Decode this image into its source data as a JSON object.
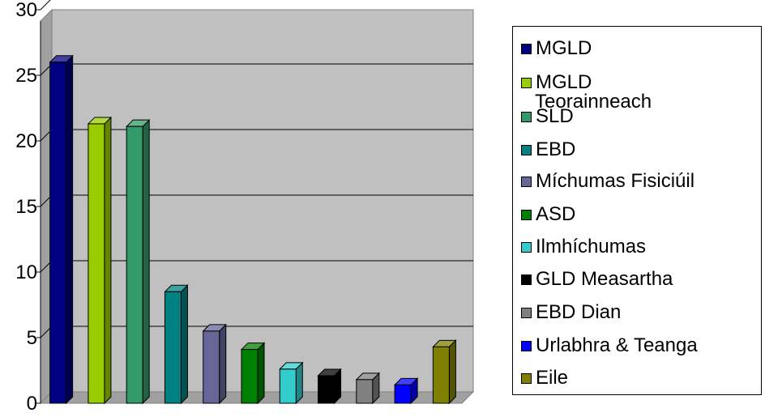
{
  "chart_data": {
    "type": "bar",
    "title": "",
    "xlabel": "",
    "ylabel": "",
    "ylim": [
      0,
      30
    ],
    "yticks": [
      "0",
      "5",
      "10",
      "15",
      "20",
      "25",
      "30"
    ],
    "grid": true,
    "legend_position": "right",
    "categories": [
      "MGLD",
      "MGLD Teorainneach",
      "SLD",
      "EBD",
      "Míchumas Fisiciúil",
      "ASD",
      "Ilmhíchumas",
      "GLD Measartha",
      "EBD Dian",
      "Urlabhra & Teanga",
      "Eile"
    ],
    "series": [
      {
        "name": "MGLD",
        "value": 26,
        "color": "#000080"
      },
      {
        "name": "MGLD Teorainneach",
        "value": 21.3,
        "color": "#99CC00"
      },
      {
        "name": "SLD",
        "value": 21.1,
        "color": "#339966"
      },
      {
        "name": "EBD",
        "value": 8.5,
        "color": "#008080"
      },
      {
        "name": "Míchumas Fisiciúil",
        "value": 5.5,
        "color": "#666699"
      },
      {
        "name": "ASD",
        "value": 4.1,
        "color": "#008000"
      },
      {
        "name": "Ilmhíchumas",
        "value": 2.6,
        "color": "#33CCCC"
      },
      {
        "name": "GLD Measartha",
        "value": 2.1,
        "color": "#000000"
      },
      {
        "name": "EBD Dian",
        "value": 1.8,
        "color": "#808080"
      },
      {
        "name": "Urlabhra & Teanga",
        "value": 1.4,
        "color": "#0000FF"
      },
      {
        "name": "Eile",
        "value": 4.3,
        "color": "#808000"
      }
    ]
  },
  "legend": {
    "items": [
      {
        "lines": [
          "MGLD"
        ]
      },
      {
        "lines": [
          "MGLD",
          "Teorainneach"
        ]
      },
      {
        "lines": [
          "SLD"
        ]
      },
      {
        "lines": [
          "EBD"
        ]
      },
      {
        "lines": [
          "Míchumas Fisiciúil"
        ]
      },
      {
        "lines": [
          "ASD"
        ]
      },
      {
        "lines": [
          "Ilmhíchumas"
        ]
      },
      {
        "lines": [
          "GLD Measartha"
        ]
      },
      {
        "lines": [
          "EBD Dian"
        ]
      },
      {
        "lines": [
          "Urlabhra & Teanga"
        ]
      },
      {
        "lines": [
          "Eile"
        ]
      }
    ]
  }
}
